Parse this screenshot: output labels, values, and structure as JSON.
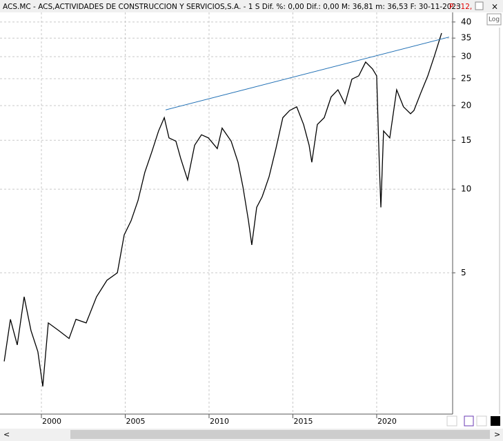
{
  "chart_data": {
    "type": "line",
    "title": "ACS.MC - ACS,ACTIVIDADES DE CONSTRUCCION Y SERVICIOS,S.A. -  1 S  Dif. %: 0,00  Dif.: 0,00  M: 36,81  m: 36,53  F: 30-11-2023",
    "price_label": "P : 12,",
    "log_button": "Log",
    "log_scale": true,
    "grid": true,
    "xlim": [
      1997.53,
      2024.53
    ],
    "xticks": [
      2000,
      2005,
      2010,
      2015,
      2020
    ],
    "ylim": [
      1.55,
      43.3
    ],
    "yticks": [
      5,
      10,
      15,
      20,
      25,
      30,
      35,
      40
    ],
    "series": [
      {
        "color": "#000000",
        "x": [
          1997.78,
          1998.15,
          1998.56,
          1998.97,
          1999.38,
          1999.79,
          2000.08,
          2000.41,
          2001.03,
          2001.65,
          2002.06,
          2002.67,
          2003.29,
          2003.91,
          2004.53,
          2004.94,
          2005.35,
          2005.76,
          2006.17,
          2006.58,
          2006.99,
          2007.33,
          2007.61,
          2008.02,
          2008.31,
          2008.72,
          2009.14,
          2009.55,
          2009.96,
          2010.49,
          2010.78,
          2011.32,
          2011.73,
          2012.02,
          2012.35,
          2012.55,
          2012.84,
          2013.17,
          2013.58,
          2013.99,
          2014.4,
          2014.81,
          2015.23,
          2015.64,
          2015.97,
          2016.13,
          2016.46,
          2016.87,
          2017.28,
          2017.69,
          2018.11,
          2018.52,
          2018.93,
          2019.34,
          2019.75,
          2020.0,
          2020.16,
          2020.25,
          2020.41,
          2020.78,
          2021.19,
          2021.6,
          2022.02,
          2022.22,
          2022.63,
          2023.05,
          2023.46,
          2023.87
        ],
        "values": [
          2.4,
          3.4,
          2.75,
          4.1,
          3.1,
          2.6,
          1.95,
          3.3,
          3.1,
          2.9,
          3.4,
          3.3,
          4.1,
          4.7,
          5.0,
          6.85,
          7.7,
          9.1,
          11.5,
          13.6,
          16.2,
          18.1,
          15.3,
          14.9,
          12.9,
          10.8,
          14.4,
          15.7,
          15.3,
          14.0,
          16.6,
          14.9,
          12.5,
          10.2,
          7.7,
          6.3,
          8.6,
          9.4,
          11.1,
          14.0,
          18.1,
          19.2,
          19.8,
          17.1,
          14.4,
          12.5,
          17.1,
          18.1,
          21.5,
          22.8,
          20.3,
          24.9,
          25.6,
          28.7,
          27.1,
          25.6,
          12.2,
          8.6,
          16.2,
          15.3,
          22.8,
          19.8,
          18.7,
          19.2,
          22.2,
          25.6,
          30.4,
          36.5
        ]
      }
    ],
    "trendline": {
      "color": "#1f6fb4",
      "x": [
        2007.41,
        2024.32
      ],
      "values": [
        19.3,
        35.3
      ]
    }
  }
}
